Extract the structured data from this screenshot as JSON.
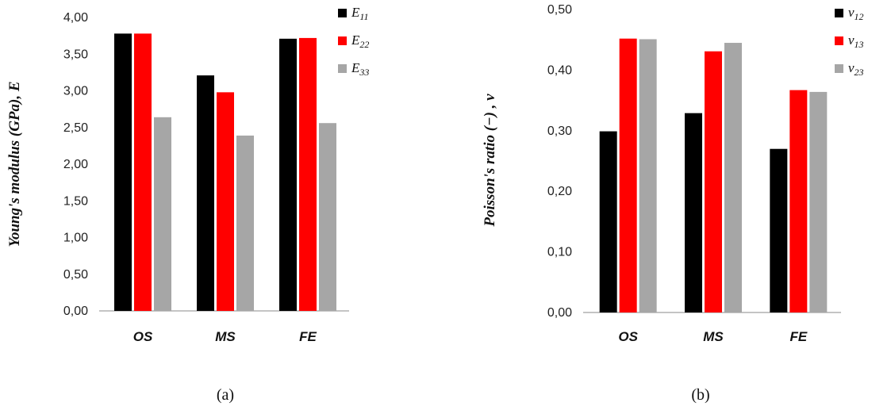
{
  "chart_data": [
    {
      "type": "bar",
      "panel_label": "(a)",
      "categories": [
        "OS",
        "MS",
        "FE"
      ],
      "ylabel": "Young's modulus (GPa), E",
      "ylim": [
        0,
        4
      ],
      "yticks": [
        "0,00",
        "0,50",
        "1,00",
        "1,50",
        "2,00",
        "2,50",
        "3,00",
        "3,50",
        "4,00"
      ],
      "grid": false,
      "legend_position": "top-right",
      "series": [
        {
          "name": "E11",
          "symbol": "E",
          "sub": "11",
          "color": "#000000",
          "values": [
            3.78,
            3.21,
            3.71
          ]
        },
        {
          "name": "E22",
          "symbol": "E",
          "sub": "22",
          "color": "#ff0000",
          "values": [
            3.78,
            2.98,
            3.72
          ]
        },
        {
          "name": "E33",
          "symbol": "E",
          "sub": "33",
          "color": "#a6a6a6",
          "values": [
            2.64,
            2.39,
            2.56
          ]
        }
      ]
    },
    {
      "type": "bar",
      "panel_label": "(b)",
      "categories": [
        "OS",
        "MS",
        "FE"
      ],
      "ylabel": "Poisson's ratio (−) , ν",
      "ylim": [
        0,
        0.5
      ],
      "yticks": [
        "0,00",
        "0,10",
        "0,20",
        "0,30",
        "0,40",
        "0,50"
      ],
      "grid": false,
      "legend_position": "top-right",
      "series": [
        {
          "name": "ν12",
          "symbol": "ν",
          "sub": "12",
          "color": "#000000",
          "values": [
            0.299,
            0.329,
            0.27
          ]
        },
        {
          "name": "ν13",
          "symbol": "ν",
          "sub": "13",
          "color": "#ff0000",
          "values": [
            0.452,
            0.431,
            0.367
          ]
        },
        {
          "name": "ν23",
          "symbol": "ν",
          "sub": "23",
          "color": "#a6a6a6",
          "values": [
            0.451,
            0.445,
            0.364
          ]
        }
      ]
    }
  ]
}
